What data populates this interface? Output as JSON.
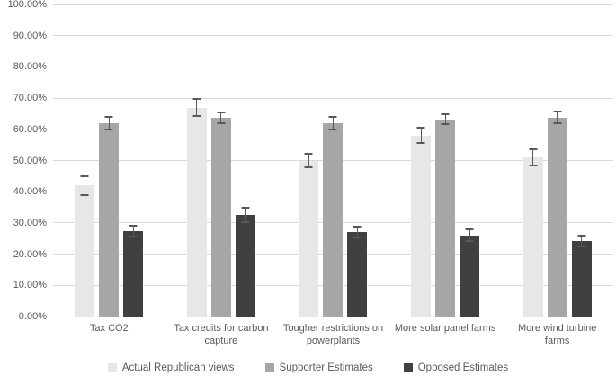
{
  "chart_data": {
    "type": "bar",
    "title": "",
    "xlabel": "",
    "ylabel": "",
    "ylim": [
      0,
      100
    ],
    "ytick_step": 10,
    "ytick_labels": [
      "0.00%",
      "10.00%",
      "20.00%",
      "30.00%",
      "40.00%",
      "50.00%",
      "60.00%",
      "70.00%",
      "80.00%",
      "90.00%",
      "100.00%"
    ],
    "grid": true,
    "legend_position": "bottom",
    "error_bars": true,
    "categories": [
      "Tax CO2",
      "Tax credits for carbon capture",
      "Tougher restrictions on powerplants",
      "More solar panel farms",
      "More wind turbine farms"
    ],
    "series": [
      {
        "name": "Actual Republican views",
        "color": "#e7e7e7",
        "values": [
          42.0,
          67.0,
          50.0,
          58.0,
          51.0
        ],
        "errors": [
          3.3,
          3.0,
          2.5,
          2.7,
          3.0
        ]
      },
      {
        "name": "Supporter Estimates",
        "color": "#a6a6a6",
        "values": [
          62.0,
          63.8,
          62.0,
          63.2,
          63.8
        ],
        "errors": [
          2.3,
          2.0,
          2.2,
          1.8,
          2.2
        ]
      },
      {
        "name": "Opposed Estimates",
        "color": "#404040",
        "values": [
          27.5,
          32.5,
          27.0,
          26.0,
          24.3
        ],
        "errors": [
          2.0,
          2.6,
          2.0,
          2.2,
          2.0
        ]
      }
    ],
    "colors": {
      "gridline": "#d9d9d9",
      "axis_text": "#595959",
      "error_bar": "#595959",
      "background": "#ffffff"
    }
  }
}
